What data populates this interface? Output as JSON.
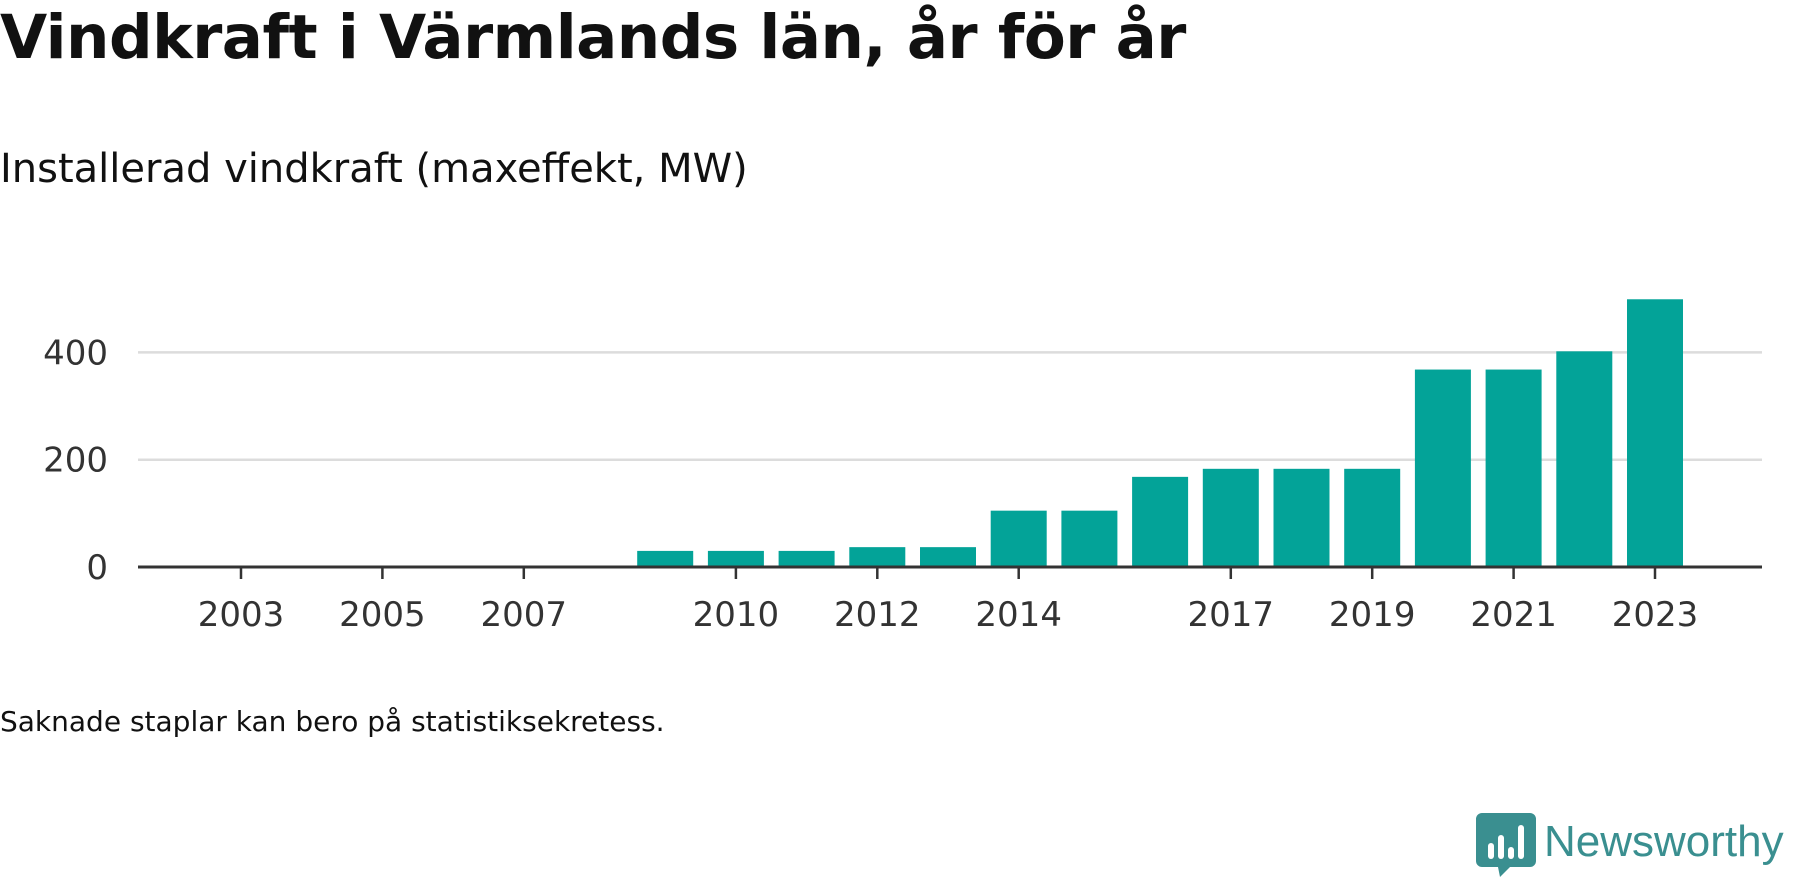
{
  "colors": {
    "bar": "#03a398",
    "grid": "#dcdcdc",
    "axis": "#333333",
    "brand": "#3a8f90"
  },
  "chart_data": {
    "type": "bar",
    "title": "Vindkraft i Värmlands län, år för år",
    "subtitle": "Installerad vindkraft (maxeffekt, MW)",
    "categories": [
      2003,
      2004,
      2005,
      2006,
      2007,
      2008,
      2009,
      2010,
      2011,
      2012,
      2013,
      2014,
      2015,
      2016,
      2017,
      2018,
      2019,
      2020,
      2021,
      2022,
      2023
    ],
    "values": [
      0,
      0,
      0,
      0,
      0,
      0,
      30,
      30,
      30,
      37,
      37,
      105,
      105,
      168,
      183,
      183,
      183,
      368,
      368,
      402,
      499
    ],
    "x_tick_labels": [
      "2003",
      "2005",
      "2007",
      "2010",
      "2012",
      "2014",
      "2017",
      "2019",
      "2021",
      "2023"
    ],
    "y_ticks": [
      0,
      200,
      400
    ],
    "ylim": [
      0,
      520
    ],
    "grid": true,
    "xlabel": "",
    "ylabel": ""
  },
  "footer": {
    "note": "Saknade staplar kan bero på statistiksekretess.",
    "brand": "Newsworthy",
    "brand_icon": "bar-chart-speech-bubble-icon"
  }
}
